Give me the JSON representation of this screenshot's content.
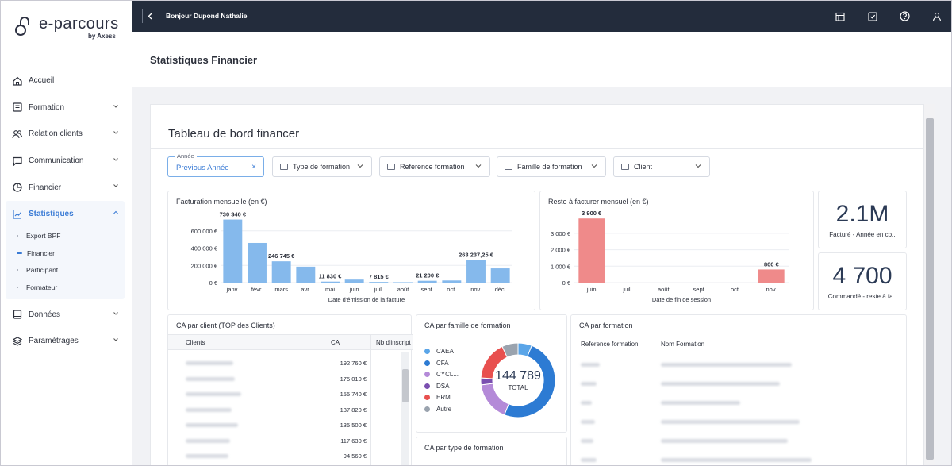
{
  "app": {
    "logo_text": "e-parcours",
    "logo_sub": "by Axess"
  },
  "topbar": {
    "greeting": "Bonjour Dupond Nathalie"
  },
  "sidebar": {
    "items": [
      {
        "label": "Accueil",
        "icon": "home-icon"
      },
      {
        "label": "Formation",
        "icon": "book-icon"
      },
      {
        "label": "Relation clients",
        "icon": "users-icon"
      },
      {
        "label": "Communication",
        "icon": "chat-icon"
      },
      {
        "label": "Financier",
        "icon": "pie-icon"
      },
      {
        "label": "Statistiques",
        "icon": "chart-icon"
      },
      {
        "label": "Données",
        "icon": "folder-icon"
      },
      {
        "label": "Paramétrages",
        "icon": "layers-icon"
      }
    ],
    "stats_sub": [
      "Export BPF",
      "Financier",
      "Participant",
      "Formateur"
    ]
  },
  "page": {
    "title": "Statistiques Financier"
  },
  "dashboard": {
    "title": "Tableau de bord financer"
  },
  "filters": {
    "year_legend": "Année",
    "year_value": "Previous Année",
    "type": "Type de formation",
    "reference": "Reference formation",
    "famille": "Famille de formation",
    "client": "Client"
  },
  "kpis": [
    {
      "value": "2.1M",
      "label": "Facturé - Année en co..."
    },
    {
      "value": "4 700",
      "label": "Commandé - reste à fa..."
    }
  ],
  "colors": {
    "bar_blue": "#85b9ec",
    "bar_red": "#ef8a8a",
    "accent": "#3a7bd5"
  },
  "chart_data": [
    {
      "type": "bar",
      "title": "Facturation mensuelle (en €)",
      "xlabel": "Date d'émission de la facture",
      "categories": [
        "janv.",
        "févr.",
        "mars",
        "avr.",
        "mai",
        "juin",
        "juil.",
        "août",
        "sept.",
        "oct.",
        "nov.",
        "déc."
      ],
      "values": [
        730340,
        460000,
        246745,
        185000,
        11830,
        35000,
        7815,
        5000,
        21200,
        25000,
        263237.25,
        165000
      ],
      "data_labels": [
        "730 340 €",
        "",
        "246 745 €",
        "",
        "11 830 €",
        "",
        "7 815 €",
        "",
        "21 200 €",
        "",
        "263 237,25 €",
        ""
      ],
      "yticks": [
        "0 €",
        "200 000 €",
        "400 000 €",
        "600 000 €"
      ],
      "ylim": [
        0,
        800000
      ]
    },
    {
      "type": "bar",
      "title": "Reste à facturer mensuel (en €)",
      "xlabel": "Date de fin de session",
      "categories": [
        "juin",
        "juil.",
        "août",
        "sept.",
        "oct.",
        "nov."
      ],
      "values": [
        3900,
        0,
        0,
        0,
        0,
        800
      ],
      "data_labels": [
        "3 900 €",
        "",
        "",
        "",
        "",
        "800 €"
      ],
      "yticks": [
        "0 €",
        "1 000 €",
        "2 000 €",
        "3 000 €"
      ],
      "ylim": [
        0,
        4200
      ]
    },
    {
      "type": "pie",
      "title": "CA par famille de formation",
      "center_value": "144 789",
      "center_label": "TOTAL",
      "labels": [
        "CAEA",
        "CFA",
        "CYCL...",
        "DSA",
        "ERM",
        "Autre"
      ],
      "values": [
        0.06,
        0.5,
        0.17,
        0.03,
        0.17,
        0.07
      ],
      "colors": [
        "#5aa5e8",
        "#2d7bd3",
        "#b48ad8",
        "#7a4fb0",
        "#e8504f",
        "#9aa3ae"
      ]
    }
  ],
  "ca_client": {
    "title": "CA par client (TOP des Clients)",
    "headers": [
      "Clients",
      "CA",
      "Nb d'inscript"
    ],
    "values": [
      "192 760 €",
      "175 010 €",
      "155 740 €",
      "137 820 €",
      "135 500 €",
      "117 630 €",
      "94 560 €"
    ]
  },
  "ca_formation": {
    "title": "CA par formation",
    "headers": [
      "Reference formation",
      "Nom Formation"
    ]
  },
  "ca_type": {
    "title": "CA par type de formation"
  }
}
